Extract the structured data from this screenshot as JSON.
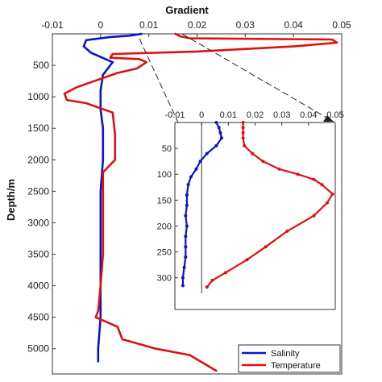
{
  "chart_data": [
    {
      "type": "line",
      "title": "Gradient",
      "xlabel": "",
      "ylabel": "Depth/m",
      "xlim": [
        -0.01,
        0.05
      ],
      "ylim": [
        0,
        5400
      ],
      "y_reversed": true,
      "x_axis_position": "top",
      "x_ticks": [
        "-0.01",
        "0",
        "0.01",
        "0.02",
        "0.03",
        "0.04",
        "0.05"
      ],
      "y_ticks": [
        "500",
        "1000",
        "1500",
        "2000",
        "2500",
        "3000",
        "3500",
        "4000",
        "4500",
        "5000"
      ],
      "legend": {
        "position": "bottom-right"
      },
      "series": [
        {
          "name": "Salinity",
          "color": "#0a14c8",
          "points": [
            [
              0.0085,
              0
            ],
            [
              0.006,
              30
            ],
            [
              0.002,
              50
            ],
            [
              -0.003,
              100
            ],
            [
              -0.0035,
              200
            ],
            [
              -0.002,
              300
            ],
            [
              0.001,
              400
            ],
            [
              0.0025,
              450
            ],
            [
              0.0015,
              550
            ],
            [
              0.0005,
              650
            ],
            [
              0.0,
              900
            ],
            [
              0.0,
              1200
            ],
            [
              0.0005,
              1500
            ],
            [
              0.0005,
              2000
            ],
            [
              0.0,
              2500
            ],
            [
              0.0,
              3000
            ],
            [
              0.0,
              3500
            ],
            [
              0.0,
              4000
            ],
            [
              0.0,
              4500
            ],
            [
              -0.0005,
              5000
            ],
            [
              -0.0005,
              5200
            ]
          ]
        },
        {
          "name": "Temperature",
          "color": "#e01010",
          "points": [
            [
              0.0155,
              0
            ],
            [
              0.0165,
              40
            ],
            [
              0.0185,
              70
            ],
            [
              0.048,
              90
            ],
            [
              0.049,
              140
            ],
            [
              0.04,
              200
            ],
            [
              0.02,
              280
            ],
            [
              0.0025,
              320
            ],
            [
              0.002,
              380
            ],
            [
              0.008,
              400
            ],
            [
              0.0095,
              450
            ],
            [
              0.0075,
              550
            ],
            [
              0.0035,
              620
            ],
            [
              -0.005,
              850
            ],
            [
              -0.0075,
              950
            ],
            [
              -0.007,
              1050
            ],
            [
              -0.003,
              1100
            ],
            [
              0.0025,
              1250
            ],
            [
              0.003,
              1600
            ],
            [
              0.003,
              2000
            ],
            [
              0.0005,
              2200
            ],
            [
              0.0005,
              2600
            ],
            [
              0.0005,
              3000
            ],
            [
              0.0005,
              3500
            ],
            [
              0.0,
              4000
            ],
            [
              -0.0005,
              4400
            ],
            [
              -0.001,
              4500
            ],
            [
              0.0035,
              4650
            ],
            [
              0.0045,
              4850
            ],
            [
              0.0115,
              5000
            ],
            [
              0.0185,
              5100
            ],
            [
              0.024,
              5350
            ]
          ]
        }
      ]
    },
    {
      "type": "line",
      "title": "",
      "xlabel": "",
      "ylabel": "",
      "xlim": [
        -0.01,
        0.05
      ],
      "ylim": [
        0,
        330
      ],
      "y_reversed": true,
      "x_ticks": [
        "-0.01",
        "0",
        "0.01",
        "0.02",
        "0.03",
        "0.04",
        "0.05"
      ],
      "y_ticks": [
        "50",
        "100",
        "150",
        "200",
        "250",
        "300"
      ],
      "series": [
        {
          "name": "Salinity",
          "color": "#0a14c8",
          "points": [
            [
              0.0055,
              0
            ],
            [
              0.0065,
              10
            ],
            [
              0.007,
              20
            ],
            [
              0.0075,
              30
            ],
            [
              0.0055,
              45
            ],
            [
              0.002,
              60
            ],
            [
              -0.0005,
              75
            ],
            [
              -0.002,
              90
            ],
            [
              -0.004,
              105
            ],
            [
              -0.005,
              120
            ],
            [
              -0.0055,
              140
            ],
            [
              -0.0055,
              160
            ],
            [
              -0.006,
              180
            ],
            [
              -0.0055,
              200
            ],
            [
              -0.006,
              220
            ],
            [
              -0.006,
              240
            ],
            [
              -0.006,
              260
            ],
            [
              -0.0065,
              280
            ],
            [
              -0.007,
              300
            ],
            [
              -0.007,
              315
            ]
          ]
        },
        {
          "name": "Temperature",
          "color": "#e01010",
          "points": [
            [
              0.0155,
              0
            ],
            [
              0.0155,
              10
            ],
            [
              0.0155,
              20
            ],
            [
              0.0155,
              30
            ],
            [
              0.016,
              45
            ],
            [
              0.019,
              60
            ],
            [
              0.023,
              75
            ],
            [
              0.029,
              90
            ],
            [
              0.036,
              100
            ],
            [
              0.042,
              110
            ],
            [
              0.045,
              120
            ],
            [
              0.049,
              138
            ],
            [
              0.047,
              155
            ],
            [
              0.042,
              180
            ],
            [
              0.032,
              210
            ],
            [
              0.024,
              240
            ],
            [
              0.017,
              265
            ],
            [
              0.009,
              290
            ],
            [
              0.004,
              305
            ],
            [
              0.002,
              318
            ]
          ]
        }
      ]
    }
  ]
}
